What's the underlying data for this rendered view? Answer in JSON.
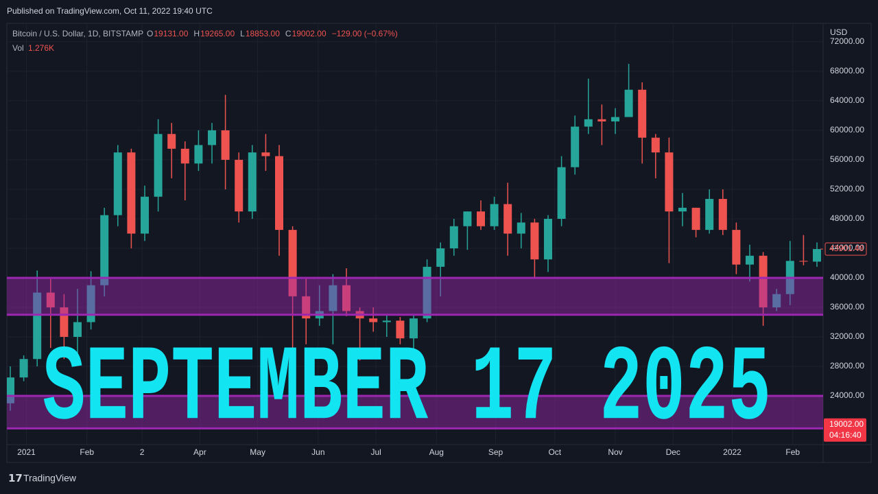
{
  "header": {
    "published": "Published on TradingView.com, Oct 11, 2022 19:40 UTC"
  },
  "chart_data": {
    "type": "candlestick",
    "symbol": "Bitcoin / U.S. Dollar, 1D, BITSTAMP",
    "ohlc_legend": [
      {
        "key": "O",
        "value": "19131.00"
      },
      {
        "key": "H",
        "value": "19265.00"
      },
      {
        "key": "L",
        "value": "18853.00"
      },
      {
        "key": "C",
        "value": "19002.00"
      }
    ],
    "change": "−129.00 (−0.67%)",
    "volume_label": "Vol",
    "volume_value": "1.276K",
    "currency": "USD",
    "open": [
      23000,
      26500,
      29000,
      38000,
      36000,
      32000,
      34000,
      39000,
      48500,
      57000,
      46000,
      51000,
      59500,
      57500,
      55500,
      58000,
      60000,
      56000,
      49000,
      57000,
      56500,
      46500,
      37500,
      34500,
      35500,
      39000,
      35500,
      34500,
      34000,
      34200,
      31800,
      34500,
      41500,
      44000,
      47000,
      49000,
      47000,
      50000,
      46000,
      47500,
      42500,
      48000,
      55000,
      60500,
      61500,
      61200,
      61800,
      65500,
      59000,
      57000,
      49000,
      49500,
      46500,
      50700,
      46500,
      41800,
      43000,
      36000,
      37800,
      42300,
      42200
    ],
    "high": [
      28000,
      29500,
      41000,
      40000,
      37800,
      38500,
      40900,
      49500,
      58000,
      57500,
      52500,
      61500,
      61000,
      58500,
      60000,
      61000,
      64800,
      57000,
      58000,
      59500,
      58000,
      47000,
      40000,
      39000,
      40500,
      41300,
      36000,
      36000,
      35000,
      34700,
      35000,
      42500,
      44800,
      48000,
      49000,
      50500,
      51000,
      52900,
      48800,
      48000,
      48500,
      56500,
      62000,
      67000,
      63500,
      63000,
      69000,
      66500,
      59500,
      59000,
      51500,
      49500,
      52000,
      52000,
      47500,
      44500,
      43500,
      38500,
      45000,
      45800,
      44800
    ],
    "low": [
      22000,
      26000,
      28000,
      30500,
      29000,
      29500,
      33000,
      37500,
      47000,
      44000,
      45000,
      49000,
      53500,
      50500,
      54500,
      55500,
      52000,
      47500,
      48000,
      54500,
      43000,
      30000,
      31000,
      33500,
      31000,
      34800,
      28800,
      32700,
      32000,
      31000,
      29300,
      34000,
      37500,
      43000,
      43800,
      46500,
      46500,
      43000,
      44000,
      40000,
      40800,
      47000,
      54000,
      59500,
      58000,
      59500,
      62000,
      55500,
      53500,
      42000,
      47000,
      45500,
      46000,
      45800,
      40500,
      39500,
      33500,
      35500,
      36300,
      41700,
      41500
    ],
    "close": [
      26500,
      29000,
      38000,
      36000,
      32000,
      34000,
      39000,
      48500,
      57000,
      46000,
      51000,
      59500,
      57500,
      55500,
      58000,
      60000,
      56000,
      49000,
      57000,
      56500,
      46500,
      37500,
      34500,
      35500,
      39000,
      35500,
      34500,
      34000,
      34200,
      31800,
      34500,
      41500,
      44000,
      47000,
      49000,
      47000,
      50000,
      46000,
      47500,
      42500,
      48000,
      55000,
      60500,
      61500,
      61200,
      61800,
      65500,
      59000,
      57000,
      49000,
      49500,
      46500,
      50700,
      46500,
      41800,
      43000,
      36000,
      37800,
      42300,
      42200,
      43901.48
    ],
    "up_color": "#26a69a",
    "down_color": "#ef5350",
    "ylim": [
      17400,
      74500
    ],
    "yticks": [
      {
        "value": 24000,
        "label": "24000.00"
      },
      {
        "value": 28000,
        "label": "28000.00"
      },
      {
        "value": 32000,
        "label": "32000.00"
      },
      {
        "value": 36000,
        "label": "36000.00"
      },
      {
        "value": 40000,
        "label": "40000.00"
      },
      {
        "value": 44000,
        "label": "44000.00"
      },
      {
        "value": 48000,
        "label": "48000.00"
      },
      {
        "value": 52000,
        "label": "52000.00"
      },
      {
        "value": 56000,
        "label": "56000.00"
      },
      {
        "value": 60000,
        "label": "60000.00"
      },
      {
        "value": 64000,
        "label": "64000.00"
      },
      {
        "value": 68000,
        "label": "68000.00"
      },
      {
        "value": 72000,
        "label": "72000.00"
      }
    ],
    "xticks": [
      {
        "value": 1.2,
        "label": "2021"
      },
      {
        "value": 5.7,
        "label": "Feb"
      },
      {
        "value": 9.8,
        "label": "2"
      },
      {
        "value": 14.1,
        "label": "Apr"
      },
      {
        "value": 18.4,
        "label": "May"
      },
      {
        "value": 22.9,
        "label": "Jun"
      },
      {
        "value": 27.2,
        "label": "Jul"
      },
      {
        "value": 31.7,
        "label": "Aug"
      },
      {
        "value": 36.1,
        "label": "Sep"
      },
      {
        "value": 40.5,
        "label": "Oct"
      },
      {
        "value": 45,
        "label": "Nov"
      },
      {
        "value": 49.3,
        "label": "Dec"
      },
      {
        "value": 53.7,
        "label": "2022"
      },
      {
        "value": 58.2,
        "label": "Feb"
      }
    ],
    "grid": true,
    "zones": [
      {
        "low": 35000,
        "high": 40000,
        "color": "#9c27b0"
      },
      {
        "low": 19600,
        "high": 24000,
        "color": "#9c27b0"
      }
    ],
    "last_price_label": "43901.48",
    "price_marker": {
      "value": 19002,
      "label": "19002.00"
    },
    "countdown": "04:16:40",
    "overlay_text": "SEPTEMBER 17 2025",
    "overlay_color": "#12e4f2"
  },
  "footer": {
    "brand": "TradingView"
  }
}
